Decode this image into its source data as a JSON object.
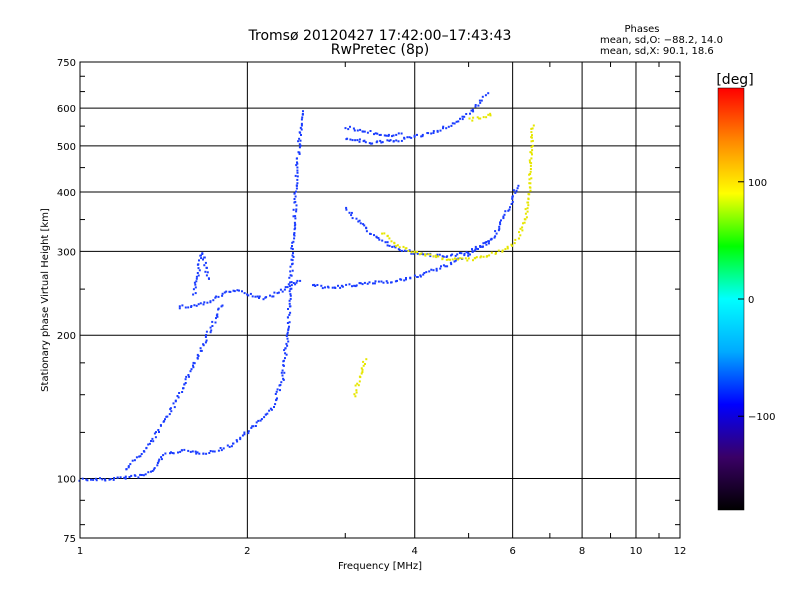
{
  "chart_data": {
    "type": "scatter",
    "title": "Tromsø 20120427 17:42:00–17:43:43",
    "subtitle": "RwPretec (8p)",
    "xlabel": "Frequency [MHz]",
    "ylabel": "Stationary phase Virtual Height [km]",
    "xscale": "log",
    "yscale": "log",
    "xlim": [
      1,
      12
    ],
    "ylim": [
      75,
      750
    ],
    "x_ticks": [
      1,
      2,
      4,
      6,
      8,
      10,
      12
    ],
    "x_tick_labels": [
      "1",
      "2",
      "4",
      "6",
      "8",
      "10",
      "12"
    ],
    "y_ticks": [
      75,
      100,
      200,
      300,
      400,
      500,
      600,
      750
    ],
    "y_tick_labels": [
      "75",
      "100",
      "200",
      "300",
      "400",
      "500",
      "600",
      "750"
    ],
    "grid": true,
    "phases": {
      "heading": "Phases",
      "line1": "mean, sd,O: −88.2, 14.0",
      "line2": "mean, sd,X:  90.1, 18.6"
    },
    "colorbar": {
      "label": "[deg]",
      "range": [
        -180,
        180
      ],
      "ticks": [
        100,
        0,
        -100
      ],
      "tick_labels": [
        "100",
        "0",
        "−100"
      ],
      "colors": [
        "#000000",
        "#3a0066",
        "#0000ff",
        "#00aaff",
        "#00ffff",
        "#00ff00",
        "#ffff00",
        "#ff8800",
        "#ff0000"
      ]
    },
    "series": [
      {
        "phase": -100,
        "color": "#1a3cff",
        "segments": [
          [
            [
              1.0,
              100
            ],
            [
              1.1,
              100
            ],
            [
              1.2,
              101
            ],
            [
              1.3,
              102
            ],
            [
              1.35,
              105
            ]
          ],
          [
            [
              1.35,
              105
            ],
            [
              1.4,
              112
            ],
            [
              1.5,
              115
            ],
            [
              1.6,
              114
            ],
            [
              1.7,
              114
            ],
            [
              1.8,
              116
            ],
            [
              1.9,
              120
            ],
            [
              2.0,
              127
            ],
            [
              2.1,
              133
            ],
            [
              2.2,
              140
            ],
            [
              2.3,
              160
            ],
            [
              2.35,
              200
            ],
            [
              2.4,
              300
            ],
            [
              2.45,
              450
            ],
            [
              2.5,
              600
            ]
          ],
          [
            [
              1.5,
              230
            ],
            [
              1.6,
              232
            ],
            [
              1.7,
              236
            ],
            [
              1.8,
              245
            ],
            [
              1.9,
              250
            ],
            [
              2.0,
              245
            ],
            [
              2.1,
              240
            ],
            [
              2.2,
              243
            ],
            [
              2.3,
              250
            ],
            [
              2.4,
              258
            ],
            [
              2.5,
              262
            ]
          ],
          [
            [
              1.6,
              245
            ],
            [
              1.62,
              270
            ],
            [
              1.65,
              300
            ],
            [
              1.7,
              260
            ]
          ],
          [
            [
              2.6,
              258
            ],
            [
              2.8,
              252
            ],
            [
              3.0,
              255
            ],
            [
              3.2,
              257
            ],
            [
              3.4,
              260
            ],
            [
              3.6,
              261
            ],
            [
              3.8,
              263
            ],
            [
              4.0,
              267
            ],
            [
              4.2,
              272
            ],
            [
              4.5,
              280
            ],
            [
              4.8,
              290
            ],
            [
              5.2,
              305
            ],
            [
              5.5,
              320
            ],
            [
              5.8,
              360
            ],
            [
              6.0,
              390
            ],
            [
              6.1,
              420
            ]
          ],
          [
            [
              3.0,
              520
            ],
            [
              3.3,
              510
            ],
            [
              3.6,
              513
            ],
            [
              4.0,
              525
            ],
            [
              4.4,
              540
            ],
            [
              4.8,
              570
            ],
            [
              5.1,
              600
            ],
            [
              5.4,
              650
            ]
          ],
          [
            [
              3.0,
              550
            ],
            [
              3.2,
              540
            ],
            [
              3.5,
              530
            ],
            [
              3.8,
              530
            ]
          ],
          [
            [
              3.0,
              370
            ],
            [
              3.3,
              330
            ],
            [
              3.6,
              310
            ],
            [
              4.0,
              298
            ],
            [
              4.5,
              295
            ],
            [
              5.0,
              300
            ],
            [
              5.5,
              320
            ]
          ],
          [
            [
              1.2,
              105
            ],
            [
              1.3,
              115
            ],
            [
              1.4,
              130
            ],
            [
              1.5,
              150
            ],
            [
              1.6,
              175
            ],
            [
              1.7,
              205
            ],
            [
              1.8,
              235
            ]
          ]
        ]
      },
      {
        "phase": 100,
        "color": "#e6e600",
        "segments": [
          [
            [
              3.5,
              330
            ],
            [
              3.7,
              310
            ],
            [
              4.0,
              300
            ],
            [
              4.3,
              295
            ],
            [
              4.6,
              290
            ],
            [
              5.0,
              290
            ],
            [
              5.4,
              295
            ],
            [
              5.8,
              305
            ],
            [
              6.1,
              320
            ],
            [
              6.3,
              350
            ],
            [
              6.4,
              400
            ],
            [
              6.45,
              480
            ],
            [
              6.5,
              560
            ]
          ],
          [
            [
              3.1,
              150
            ],
            [
              3.15,
              160
            ],
            [
              3.2,
              170
            ],
            [
              3.25,
              180
            ]
          ],
          [
            [
              5.0,
              570
            ],
            [
              5.3,
              575
            ],
            [
              5.5,
              590
            ]
          ]
        ]
      }
    ]
  }
}
